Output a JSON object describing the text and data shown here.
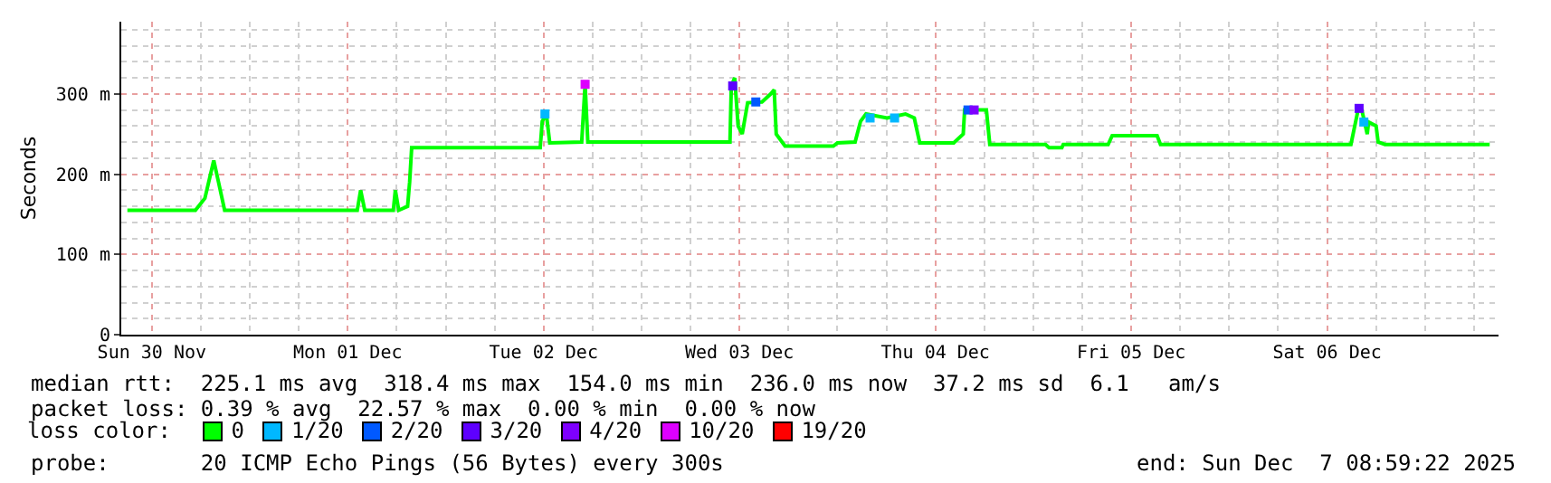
{
  "chart_data": {
    "type": "line",
    "ylabel": "Seconds",
    "legend_title": "loss color:",
    "legend": "bottom",
    "grid": true,
    "line_style": "solid",
    "xlim": [
      "2025-11-30T08:15",
      "2025-12-07T09:00"
    ],
    "xticks": [
      {
        "value": "2025-11-30T12:00",
        "label": "Sun 30 Nov"
      },
      {
        "value": "2025-12-01T12:00",
        "label": "Mon 01 Dec"
      },
      {
        "value": "2025-12-02T12:00",
        "label": "Tue 02 Dec"
      },
      {
        "value": "2025-12-03T12:00",
        "label": "Wed 03 Dec"
      },
      {
        "value": "2025-12-04T12:00",
        "label": "Thu 04 Dec"
      },
      {
        "value": "2025-12-05T12:00",
        "label": "Fri 05 Dec"
      },
      {
        "value": "2025-12-06T12:00",
        "label": "Sat 06 Dec"
      }
    ],
    "ylim": [
      0,
      390
    ],
    "yticks": [
      0,
      {
        "value": 100,
        "label": "100 m"
      },
      {
        "value": 200,
        "label": "200 m"
      },
      {
        "value": 300,
        "label": "300 m"
      }
    ],
    "series": [
      {
        "name": "0",
        "color": "#00ff00",
        "marker": "none",
        "x": [
          "2025-11-30T09:00",
          "2025-11-30T17:20",
          "2025-11-30T18:30",
          "2025-11-30T19:35",
          "2025-11-30T20:10",
          "2025-11-30T20:55",
          "2025-12-01T13:10",
          "2025-12-01T13:35",
          "2025-12-01T14:05",
          "2025-12-01T17:35",
          "2025-12-01T17:50",
          "2025-12-01T18:15",
          "2025-12-01T19:20",
          "2025-12-01T19:35",
          "2025-12-01T19:50",
          "2025-12-02T11:35",
          "2025-12-02T11:50",
          "2025-12-02T12:20",
          "2025-12-02T12:45",
          "2025-12-02T16:40",
          "2025-12-02T17:05",
          "2025-12-02T17:25",
          "2025-12-03T10:50",
          "2025-12-03T11:00",
          "2025-12-03T11:25",
          "2025-12-03T11:50",
          "2025-12-03T12:20",
          "2025-12-03T13:00",
          "2025-12-03T14:45",
          "2025-12-03T15:50",
          "2025-12-03T16:15",
          "2025-12-03T16:30",
          "2025-12-03T17:35",
          "2025-12-03T23:30",
          "2025-12-04T00:00",
          "2025-12-04T02:10",
          "2025-12-04T02:50",
          "2025-12-04T03:30",
          "2025-12-04T06:05",
          "2025-12-04T08:20",
          "2025-12-04T09:25",
          "2025-12-04T10:05",
          "2025-12-04T14:15",
          "2025-12-04T15:25",
          "2025-12-04T15:35",
          "2025-12-04T18:15",
          "2025-12-04T18:40",
          "2025-12-05T01:30",
          "2025-12-05T01:55",
          "2025-12-05T03:30",
          "2025-12-05T03:40",
          "2025-12-05T09:10",
          "2025-12-05T09:40",
          "2025-12-05T15:10",
          "2025-12-05T15:35",
          "2025-12-06T14:55",
          "2025-12-06T15:50",
          "2025-12-06T16:15",
          "2025-12-06T16:55",
          "2025-12-06T17:05",
          "2025-12-06T18:00",
          "2025-12-06T18:15",
          "2025-12-06T19:05",
          "2025-12-07T07:55"
        ],
        "values": [
          155,
          155,
          170,
          217,
          190,
          155,
          155,
          180,
          155,
          155,
          180,
          155,
          160,
          190,
          233,
          233,
          266,
          275,
          239,
          240,
          312,
          240,
          240,
          310,
          320,
          260,
          250,
          289,
          290,
          300,
          305,
          250,
          235,
          235,
          239,
          240,
          266,
          275,
          270,
          275,
          270,
          239,
          239,
          250,
          280,
          280,
          237,
          237,
          233,
          233,
          237,
          237,
          248,
          248,
          237,
          237,
          282,
          280,
          250,
          265,
          260,
          240,
          237,
          237
        ]
      },
      {
        "name": "1/20",
        "color": "#00b8ff",
        "type": "scatter",
        "marker": "square",
        "x": [
          "2025-12-02T12:10",
          "2025-12-04T04:00",
          "2025-12-04T07:00",
          "2025-12-06T16:30"
        ],
        "values": [
          275,
          270,
          270,
          265
        ]
      },
      {
        "name": "2/20",
        "color": "#0059ff",
        "type": "scatter",
        "marker": "square",
        "x": [
          "2025-12-03T14:00",
          "2025-12-04T16:00"
        ],
        "values": [
          290,
          280
        ]
      },
      {
        "name": "3/20",
        "color": "#5e00ff",
        "type": "scatter",
        "marker": "square",
        "x": [
          "2025-12-03T11:10",
          "2025-12-06T15:55"
        ],
        "values": [
          310,
          282
        ]
      },
      {
        "name": "4/20",
        "color": "#7e00ff",
        "type": "scatter",
        "marker": "square",
        "x": [
          "2025-12-04T16:45"
        ],
        "values": [
          280
        ]
      },
      {
        "name": "10/20",
        "color": "#dd00ff",
        "type": "scatter",
        "marker": "square",
        "x": [
          "2025-12-02T17:05"
        ],
        "values": [
          312
        ]
      },
      {
        "name": "19/20",
        "color": "#ff0000",
        "type": "scatter",
        "marker": "square"
      }
    ],
    "annotations": [
      "median rtt:  225.1 ms avg  318.4 ms max  154.0 ms min  236.0 ms now  37.2 ms sd  6.1   am/s",
      "packet loss: 0.39 % avg  22.57 % max  0.00 % min  0.00 % now",
      "probe:       20 ICMP Echo Pings (56 Bytes) every 300s",
      "end: Sun Dec  7 08:59:22 2025"
    ]
  }
}
